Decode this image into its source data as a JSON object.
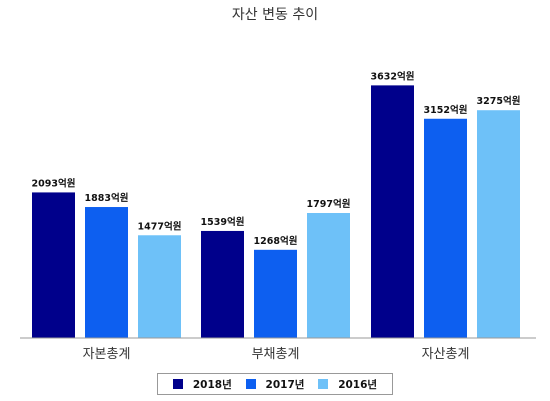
{
  "chart_data": {
    "type": "bar",
    "title": "자산 변동 추이",
    "categories": [
      "자본총계",
      "부채총계",
      "자산총계"
    ],
    "series": [
      {
        "name": "2018년",
        "color": "#00008b",
        "values": [
          2093,
          1539,
          3632
        ],
        "labels": [
          "2093억원",
          "1539억원",
          "3632억원"
        ]
      },
      {
        "name": "2017년",
        "color": "#0d5ff0",
        "values": [
          1883,
          1268,
          3152
        ],
        "labels": [
          "1883억원",
          "1268억원",
          "3152억원"
        ]
      },
      {
        "name": "2016년",
        "color": "#6ec1f8",
        "values": [
          1477,
          1797,
          3275
        ],
        "labels": [
          "1477억원",
          "1797억원",
          "3275억원"
        ]
      }
    ],
    "ylim": [
      0,
      4500
    ],
    "grid": false,
    "legend_position": "bottom"
  }
}
